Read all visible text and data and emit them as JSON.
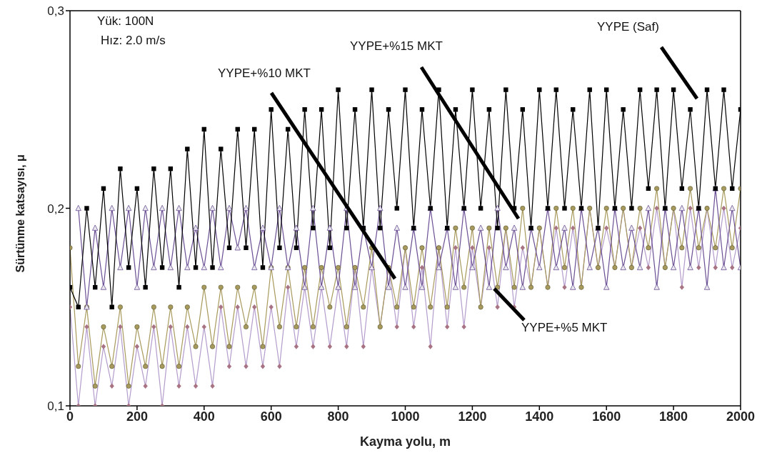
{
  "chart_data": {
    "type": "line",
    "xlabel": "Kayma yolu, m",
    "ylabel": "Sürtünme katsayısı, μ",
    "annotations": [
      "Yük: 100N",
      "Hız: 2.0 m/s"
    ],
    "x": [
      0,
      25,
      50,
      75,
      100,
      125,
      150,
      175,
      200,
      225,
      250,
      275,
      300,
      325,
      350,
      375,
      400,
      425,
      450,
      475,
      500,
      525,
      550,
      575,
      600,
      625,
      650,
      675,
      700,
      725,
      750,
      775,
      800,
      825,
      850,
      875,
      900,
      925,
      950,
      975,
      1000,
      1025,
      1050,
      1075,
      1100,
      1125,
      1150,
      1175,
      1200,
      1225,
      1250,
      1275,
      1300,
      1325,
      1350,
      1375,
      1400,
      1425,
      1450,
      1475,
      1500,
      1525,
      1550,
      1575,
      1600,
      1625,
      1650,
      1675,
      1700,
      1725,
      1750,
      1775,
      1800,
      1825,
      1850,
      1875,
      1900,
      1925,
      1950,
      1975,
      2000
    ],
    "series": [
      {
        "name": "YYPE (Saf)",
        "color": "#000000",
        "marker": "square",
        "values": [
          0.16,
          0.15,
          0.2,
          0.16,
          0.21,
          0.15,
          0.22,
          0.17,
          0.21,
          0.16,
          0.22,
          0.17,
          0.22,
          0.16,
          0.23,
          0.17,
          0.24,
          0.17,
          0.23,
          0.18,
          0.24,
          0.18,
          0.24,
          0.17,
          0.25,
          0.18,
          0.24,
          0.18,
          0.25,
          0.19,
          0.25,
          0.18,
          0.26,
          0.19,
          0.25,
          0.19,
          0.26,
          0.19,
          0.25,
          0.2,
          0.26,
          0.19,
          0.25,
          0.2,
          0.26,
          0.19,
          0.25,
          0.2,
          0.26,
          0.2,
          0.25,
          0.19,
          0.26,
          0.2,
          0.25,
          0.19,
          0.26,
          0.2,
          0.26,
          0.2,
          0.25,
          0.2,
          0.26,
          0.19,
          0.26,
          0.2,
          0.25,
          0.2,
          0.26,
          0.21,
          0.26,
          0.2,
          0.26,
          0.21,
          0.25,
          0.2,
          0.26,
          0.21,
          0.26,
          0.21,
          0.25
        ]
      },
      {
        "name": "YYPE+%15 MKT",
        "color": "#6b4f94",
        "marker": "triangle",
        "values": [
          null,
          0.2,
          0.15,
          0.19,
          0.16,
          0.2,
          0.17,
          0.2,
          0.16,
          0.2,
          0.17,
          0.2,
          0.17,
          0.2,
          0.17,
          0.19,
          0.17,
          0.2,
          0.17,
          0.2,
          0.18,
          0.2,
          0.17,
          0.19,
          0.17,
          0.2,
          0.17,
          0.19,
          0.16,
          0.2,
          0.16,
          0.19,
          0.16,
          0.2,
          0.16,
          0.19,
          0.17,
          0.2,
          0.16,
          0.19,
          0.16,
          0.19,
          0.16,
          0.2,
          0.17,
          0.19,
          0.16,
          0.2,
          0.17,
          0.19,
          0.16,
          0.2,
          0.17,
          0.19,
          0.16,
          0.19,
          0.17,
          0.2,
          0.17,
          0.19,
          0.16,
          0.2,
          0.17,
          0.19,
          0.16,
          0.2,
          0.17,
          0.19,
          0.17,
          0.2,
          0.16,
          0.2,
          0.17,
          0.2,
          0.17,
          0.2,
          0.16,
          0.21,
          0.17,
          0.2,
          0.17
        ]
      },
      {
        "name": "YYPE+%10 MKT",
        "color": "#a89a5c",
        "marker": "circle",
        "values": [
          0.18,
          0.12,
          0.15,
          0.11,
          0.14,
          0.12,
          0.15,
          0.11,
          0.14,
          0.12,
          0.15,
          0.12,
          0.15,
          0.12,
          0.15,
          0.13,
          0.16,
          0.13,
          0.16,
          0.13,
          0.16,
          0.14,
          0.16,
          0.13,
          0.17,
          0.14,
          0.17,
          0.14,
          0.17,
          0.14,
          0.17,
          0.15,
          0.17,
          0.14,
          0.17,
          0.15,
          0.18,
          0.14,
          0.17,
          0.15,
          0.18,
          0.15,
          0.18,
          0.15,
          0.18,
          0.15,
          0.19,
          0.16,
          0.19,
          0.15,
          0.19,
          0.16,
          0.19,
          0.16,
          0.2,
          0.16,
          0.19,
          0.16,
          0.2,
          0.17,
          0.2,
          0.16,
          0.2,
          0.17,
          0.2,
          0.17,
          0.2,
          0.17,
          0.2,
          0.18,
          0.21,
          0.17,
          0.2,
          0.18,
          0.21,
          0.18,
          0.2,
          0.18,
          0.21,
          0.18,
          0.21
        ]
      },
      {
        "name": "YYPE+%5 MKT",
        "color": "#b49ccc",
        "marker": "diamond",
        "values": [
          0.15,
          0.1,
          0.14,
          0.1,
          0.13,
          0.11,
          0.14,
          0.1,
          0.13,
          0.11,
          0.14,
          0.1,
          0.14,
          0.11,
          0.14,
          0.11,
          0.14,
          0.11,
          0.15,
          0.12,
          0.15,
          0.12,
          0.15,
          0.12,
          0.15,
          0.12,
          0.16,
          0.13,
          0.16,
          0.13,
          0.16,
          0.13,
          0.16,
          0.13,
          0.17,
          0.13,
          0.17,
          0.14,
          0.17,
          0.14,
          0.18,
          0.14,
          0.17,
          0.13,
          0.18,
          0.14,
          0.18,
          0.14,
          0.18,
          0.15,
          0.18,
          0.15,
          0.19,
          0.15,
          0.18,
          0.16,
          0.19,
          0.16,
          0.19,
          0.16,
          0.19,
          0.16,
          0.2,
          0.17,
          0.19,
          0.17,
          0.2,
          0.17,
          0.19,
          0.17,
          0.2,
          0.17,
          0.2,
          0.16,
          0.2,
          0.17,
          0.2,
          0.17,
          0.2,
          0.17,
          0.19
        ]
      }
    ],
    "xlim": [
      0,
      2000
    ],
    "xticks": [
      0,
      200,
      400,
      600,
      800,
      1000,
      1200,
      1400,
      1600,
      1800,
      2000
    ],
    "ylim": [
      0.1,
      0.3
    ],
    "yticks": [
      {
        "value": 0.1,
        "label": "0,1"
      },
      {
        "value": 0.2,
        "label": "0,2"
      },
      {
        "value": 0.3,
        "label": "0,3"
      }
    ],
    "grid": false,
    "legend": false
  }
}
